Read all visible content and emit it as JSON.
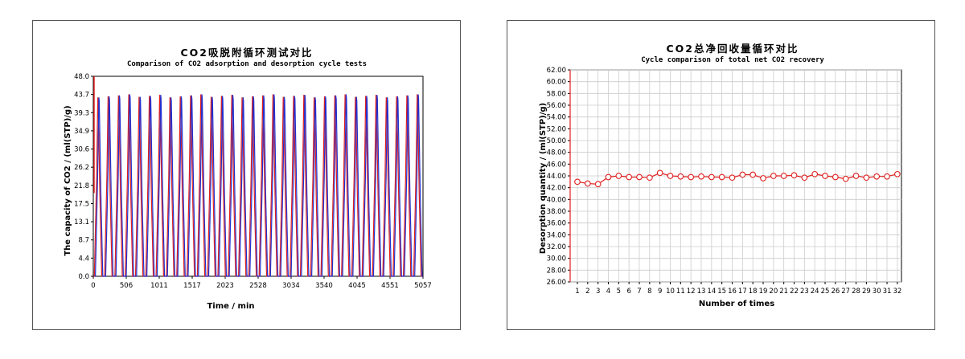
{
  "chart_data": [
    {
      "type": "line",
      "title": "CO2吸脱附循环测试对比",
      "subtitle": "Comparison of CO2 adsorption and desorption cycle tests",
      "xlabel": "Time / min",
      "ylabel": "The capacity of CO2 / (ml(STP)/g)",
      "xlim": [
        0,
        5057
      ],
      "ylim": [
        0,
        48
      ],
      "x_ticks": [
        "0",
        "506",
        "1011",
        "1517",
        "2023",
        "2528",
        "3034",
        "3540",
        "4045",
        "4551",
        "5057"
      ],
      "y_ticks": [
        "48.0",
        "43.7",
        "39.3",
        "34.9",
        "30.6",
        "26.2",
        "21.8",
        "17.5",
        "13.1",
        "8.7",
        "4.4",
        "0.0"
      ],
      "cycles": 32,
      "cycle_period_min": 158,
      "peak_value": 43.3,
      "base_value": 0.0,
      "series": [
        {
          "name": "",
          "color": "#e02020",
          "values": "sawtooth cycles: rise 0 to ~43.3 and back to 0, repeated 32 times over 0–5057 min"
        },
        {
          "name": "",
          "color": "#2030d0",
          "values": "sawtooth cycles: rise 0 to ~43.3 and back to 0, repeated 32 times over 0–5057 min"
        }
      ],
      "grid": false,
      "colors": {
        "adsorption": "#e02020",
        "desorption": "#2030d0"
      }
    },
    {
      "type": "line",
      "title": "CO2总净回收量循环对比",
      "subtitle": "Cycle comparison of total net CO2 recovery",
      "xlabel": "Number of times",
      "ylabel": "Desorption quantity / (ml(STP)/g)",
      "ylim": [
        26,
        62
      ],
      "y_ticks": [
        "62.00",
        "60.00",
        "58.00",
        "56.00",
        "54.00",
        "52.00",
        "50.00",
        "48.00",
        "46.00",
        "44.00",
        "42.00",
        "40.00",
        "38.00",
        "36.00",
        "34.00",
        "32.00",
        "30.00",
        "28.00",
        "26.00"
      ],
      "categories": [
        "1",
        "2",
        "3",
        "4",
        "5",
        "6",
        "7",
        "8",
        "9",
        "10",
        "11",
        "12",
        "13",
        "14",
        "15",
        "16",
        "17",
        "18",
        "19",
        "20",
        "21",
        "22",
        "23",
        "24",
        "25",
        "26",
        "27",
        "28",
        "29",
        "30",
        "31",
        "32"
      ],
      "values": [
        43.0,
        42.7,
        42.6,
        43.8,
        44.0,
        43.8,
        43.8,
        43.7,
        44.5,
        44.0,
        43.9,
        43.8,
        43.9,
        43.8,
        43.8,
        43.7,
        44.2,
        44.2,
        43.6,
        44.0,
        44.0,
        44.1,
        43.7,
        44.3,
        44.0,
        43.8,
        43.5,
        44.0,
        43.7,
        43.9,
        43.9,
        44.3
      ],
      "grid": true,
      "colors": {
        "line": "#e02020",
        "marker_fill": "#ffffff"
      }
    }
  ]
}
